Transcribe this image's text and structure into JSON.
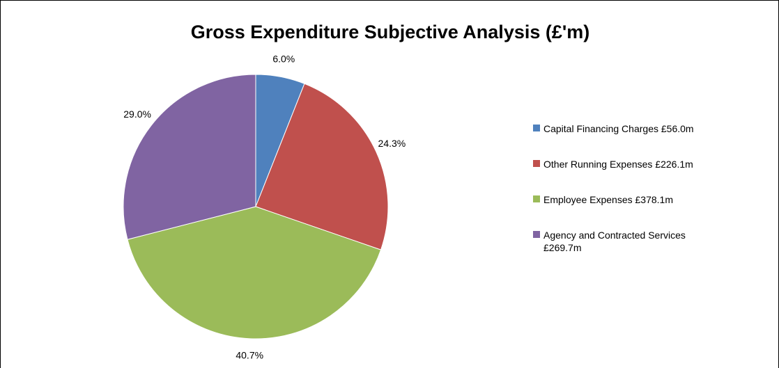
{
  "chart_data": {
    "type": "pie",
    "title": "Gross Expenditure Subjective Analysis (£'m)",
    "categories": [
      "Capital Financing Charges £56.0m",
      "Other Running Expenses £226.1m",
      "Employee Expenses £378.1m",
      "Agency and Contracted Services £269.7m"
    ],
    "values": [
      6.0,
      24.3,
      40.7,
      29.0
    ],
    "value_labels": [
      "6.0%",
      "24.3%",
      "40.7%",
      "29.0%"
    ],
    "colors": [
      "#4f81bd",
      "#c0504d",
      "#9bbb59",
      "#8064a2"
    ],
    "legend": "right"
  }
}
